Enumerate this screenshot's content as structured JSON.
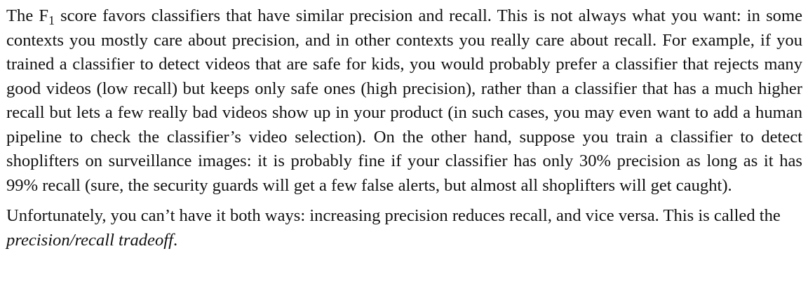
{
  "paragraph_1": {
    "f1_prefix": "The F",
    "f1_subscript": "1",
    "text": " score favors classifiers that have similar precision and recall. This is not always what you want: in some contexts you mostly care about precision, and in other contexts you really care about recall. For example, if you trained a classifier to detect videos that are safe for kids, you would probably prefer a classifier that rejects many good videos (low recall) but keeps only safe ones (high precision), rather than a classifier that has a much higher recall but lets a few really bad videos show up in your product (in such cases, you may even want to add a human pipeline to check the classifier’s video selection). On the other hand, suppose you train a classifier to detect shoplifters on surveillance images: it is probably fine if your classifier has only 30% precision as long as it has 99% recall (sure, the security guards will get a few false alerts, but almost all shoplifters will get caught)."
  },
  "paragraph_2": {
    "text": "Unfortunately, you can’t have it both ways: increasing precision reduces recall, and vice versa. This is called the ",
    "emphasis": "precision/recall tradeoff",
    "end": "."
  }
}
